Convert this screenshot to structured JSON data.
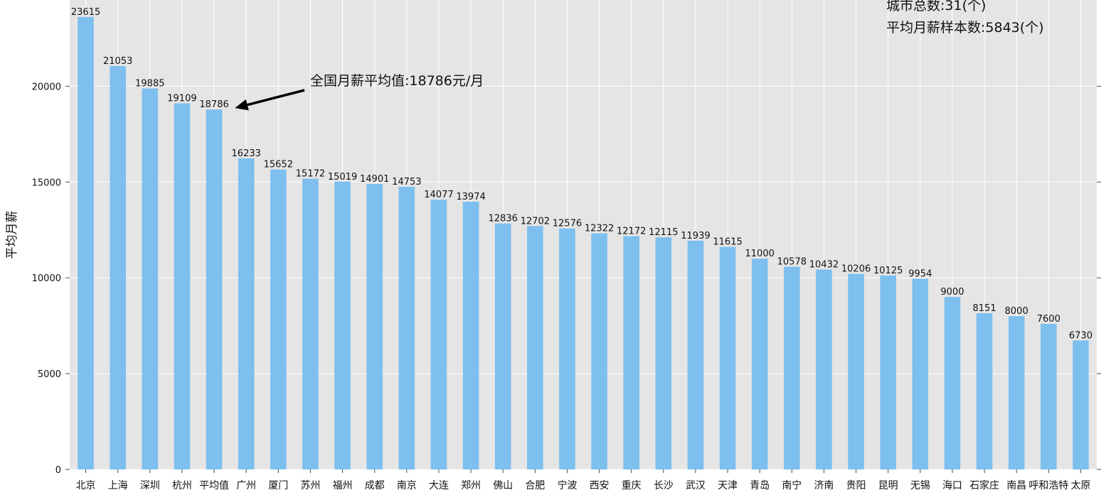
{
  "chart_data": {
    "type": "bar",
    "ylabel": "平均月薪",
    "xlabel": "",
    "ylim": [
      0,
      24500
    ],
    "yticks": [
      0,
      5000,
      10000,
      15000,
      20000
    ],
    "grid": true,
    "bar_color": "#7dbfee",
    "background_color": "#e5e5e5",
    "categories": [
      "北京",
      "上海",
      "深圳",
      "杭州",
      "平均值",
      "广州",
      "厦门",
      "苏州",
      "福州",
      "成都",
      "南京",
      "大连",
      "郑州",
      "佛山",
      "合肥",
      "宁波",
      "西安",
      "重庆",
      "长沙",
      "武汉",
      "天津",
      "青岛",
      "南宁",
      "济南",
      "贵阳",
      "昆明",
      "无锡",
      "海口",
      "石家庄",
      "南昌",
      "呼和浩特",
      "太原"
    ],
    "values": [
      23615,
      21053,
      19885,
      19109,
      18786,
      16233,
      15652,
      15172,
      15019,
      14901,
      14753,
      14077,
      13974,
      12836,
      12702,
      12576,
      12322,
      12172,
      12115,
      11939,
      11615,
      11000,
      10578,
      10432,
      10206,
      10125,
      9954,
      9000,
      8151,
      8000,
      7600,
      6730
    ],
    "annotation": {
      "text": "全国月薪平均值:18786元/月",
      "target_category": "平均值",
      "target_value": 18786
    },
    "stats": {
      "city_total": "城市总数:31(个)",
      "sample_total": "平均月薪样本数:5843(个)"
    }
  }
}
